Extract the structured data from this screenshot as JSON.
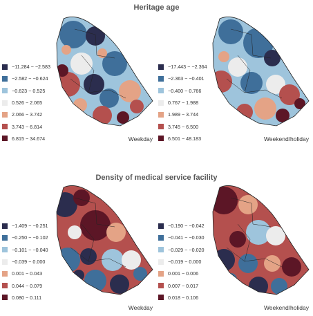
{
  "titles": {
    "top": "Heritage age",
    "bottom": "Density of medical service facility"
  },
  "colors": [
    "#2b2d4e",
    "#3f6f9a",
    "#9ec4dc",
    "#ececec",
    "#e4a386",
    "#b4504e",
    "#5c1626"
  ],
  "panels": [
    {
      "caption": "Weekday",
      "legend": [
        "−11.284 − −2.583",
        "−2.582 − −0.624",
        "−0.623 − 0.525",
        "0.526 − 2.065",
        "2.066 − 3.742",
        "3.743 − 6.814",
        "6.815 − 34.674"
      ]
    },
    {
      "caption": "Weekend/holiday",
      "legend": [
        "−17.443 − −2.364",
        "−2.363 − −0.401",
        "−0.400 − 0.766",
        "0.767 − 1.988",
        "1.989 − 3.744",
        "3.745 − 6.500",
        "6.501 − 48.183"
      ]
    },
    {
      "caption": "Weekday",
      "legend": [
        "−1.409 − −0.251",
        "−0.250 − −0.102",
        "−0.101 − −0.040",
        "−0.039 − 0.000",
        "0.001 − 0.043",
        "0.044 − 0.079",
        "0.080 − 0.111"
      ]
    },
    {
      "caption": "Weekend/holiday",
      "legend": [
        "−0.190 − −0.042",
        "−0.041 − −0.030",
        "−0.029 − −0.020",
        "−0.019 − 0.000",
        "0.001 − 0.006",
        "0.007 − 0.017",
        "0.018 − 0.106"
      ]
    }
  ]
}
